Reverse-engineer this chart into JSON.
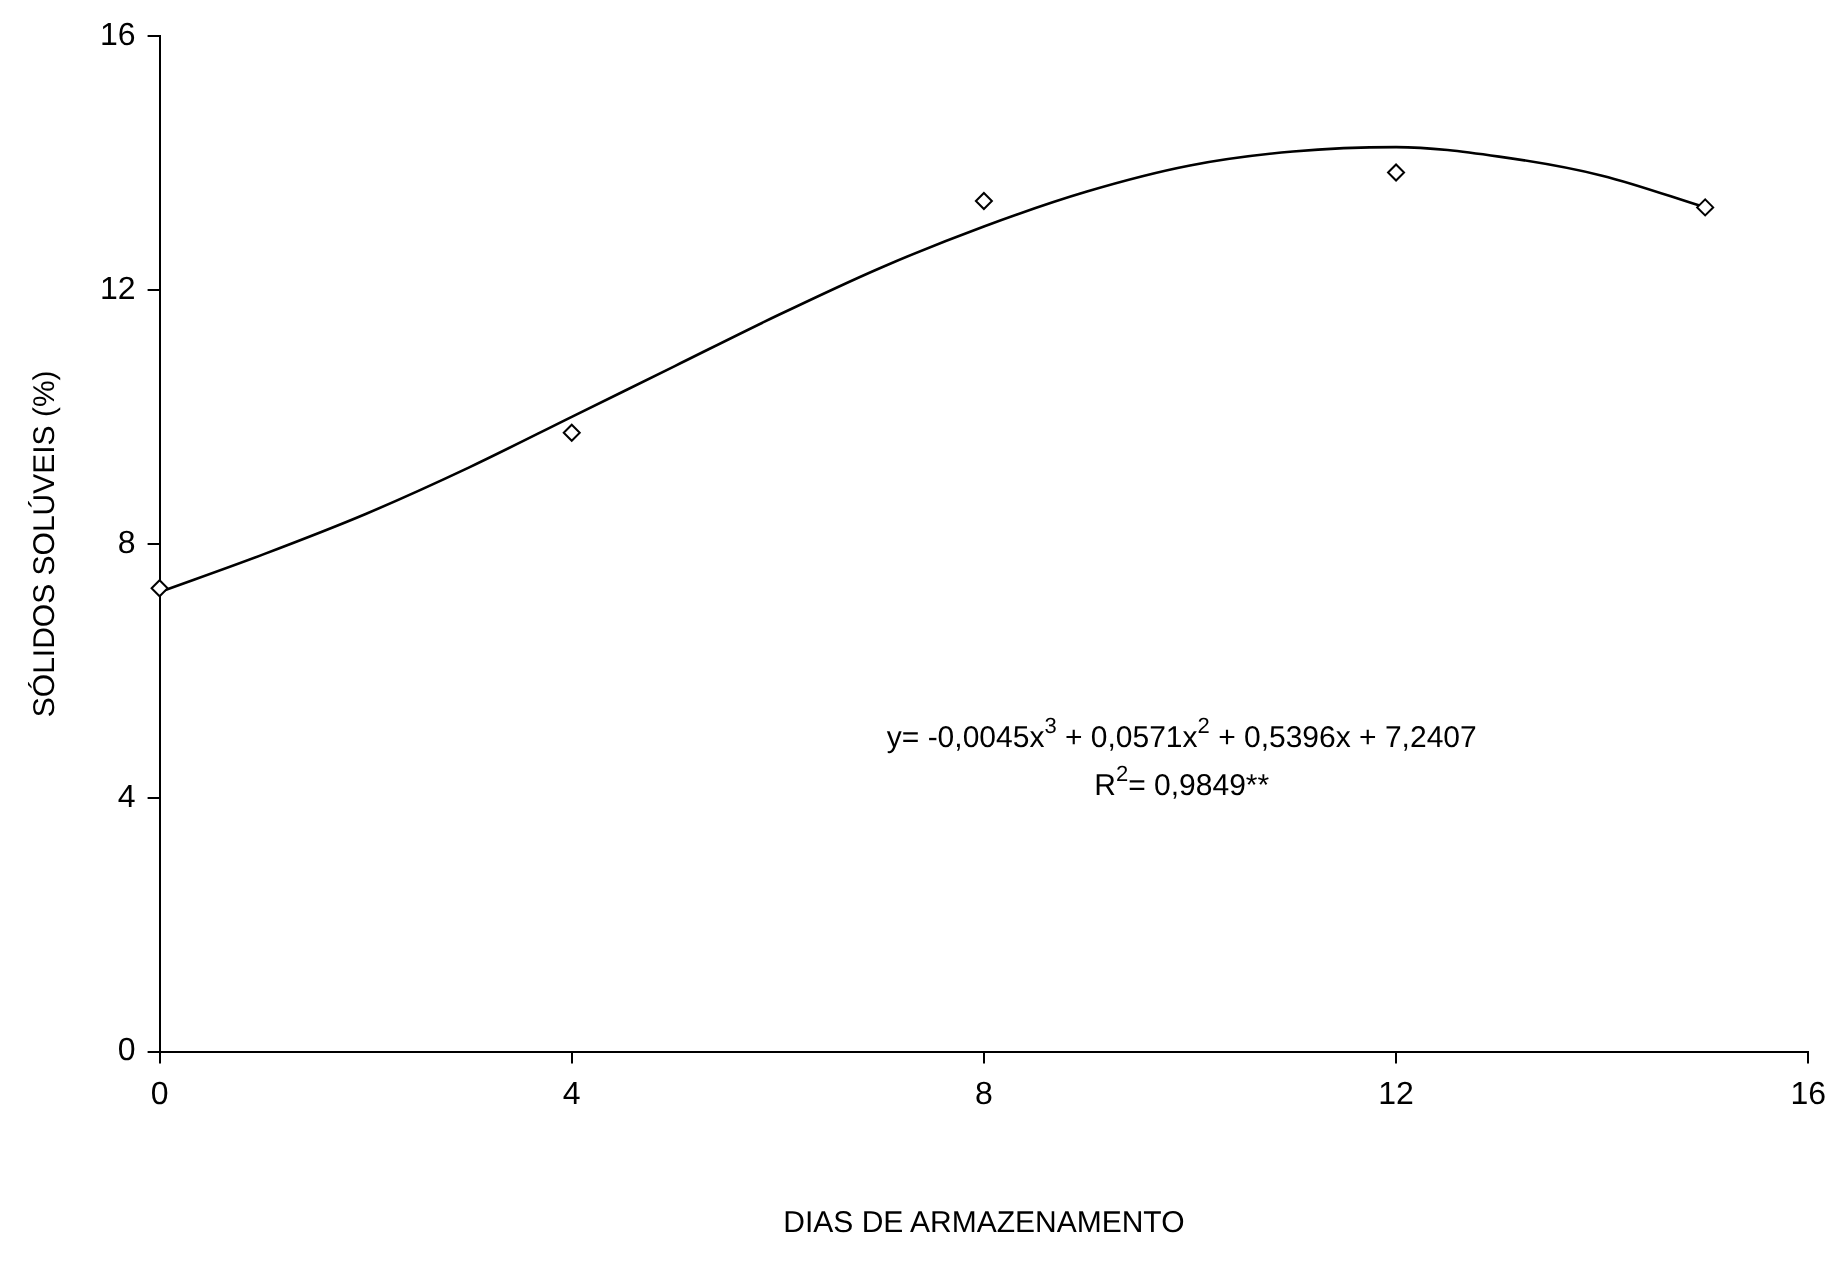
{
  "chart_data": {
    "type": "scatter",
    "xlabel": "DIAS DE ARMAZENAMENTO",
    "ylabel": "SÓLIDOS SOLÚVEIS (%)",
    "xlim": [
      0,
      16
    ],
    "xticks": [
      0,
      4,
      8,
      12,
      16
    ],
    "ylim": [
      0,
      16
    ],
    "yticks": [
      0,
      4,
      8,
      12,
      16
    ],
    "grid": false,
    "legend": false,
    "series": [
      {
        "marker": "diamond",
        "color": "#000000",
        "x": [
          0,
          4,
          8,
          12,
          15
        ],
        "values": [
          7.3,
          9.75,
          13.4,
          13.85,
          13.3
        ]
      },
      {
        "type": "line",
        "marker": "none",
        "color": "#000000",
        "x": [
          0,
          1,
          2,
          3,
          4,
          5,
          6,
          7,
          8,
          9,
          10,
          11,
          12,
          13,
          14,
          15
        ],
        "values": [
          7.24,
          7.83,
          8.47,
          9.2,
          10.0,
          10.8,
          11.6,
          12.35,
          13.0,
          13.55,
          13.96,
          14.18,
          14.25,
          14.1,
          13.8,
          13.3
        ]
      }
    ],
    "annotations": [
      "y= -0,0045x$^{3}$ + 0,0571x$^{2}$ + 0,5396x + 7,2407",
      "R$^{2}$= 0,9849**"
    ]
  }
}
